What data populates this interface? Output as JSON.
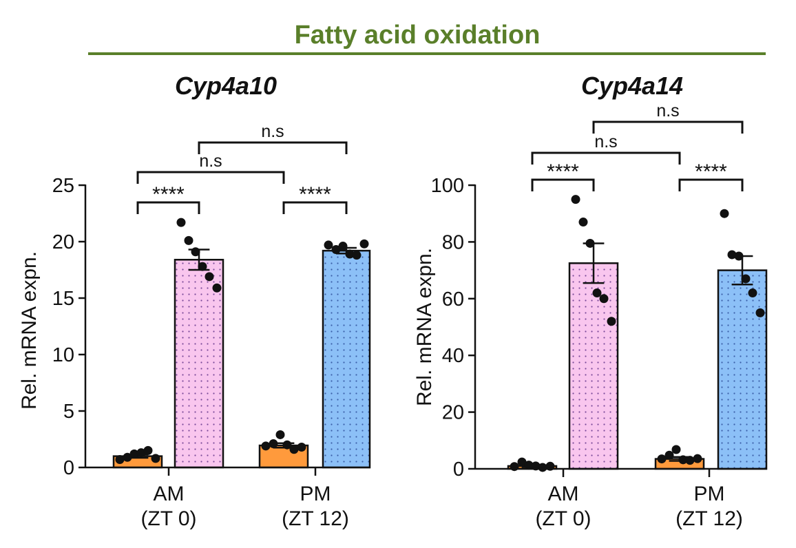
{
  "figure": {
    "title": "Fatty acid oxidation",
    "title_color": "#5a7f2a"
  },
  "colors": {
    "orange": "#ff9a3c",
    "pink": "#f9c6ee",
    "pink_dot": "#7a4a9a",
    "blue": "#8cc0f7",
    "blue_dot": "#3b5fa8",
    "ink": "#111111"
  },
  "chart_data": [
    {
      "type": "bar",
      "title": "Cyp4a10",
      "ylabel": "Rel. mRNA expn.",
      "xlabel": "",
      "ylim": [
        0,
        25
      ],
      "yticks": [
        0,
        5,
        10,
        15,
        20,
        25
      ],
      "categories": [
        {
          "label": "AM",
          "sublabel": "(ZT 0)"
        },
        {
          "label": "PM",
          "sublabel": "(ZT 12)"
        }
      ],
      "bars": [
        {
          "category": "AM",
          "fill": "orange",
          "pattern": "none",
          "mean": 1.0,
          "sem": 0.15,
          "points": [
            0.7,
            0.9,
            1.2,
            1.3,
            1.5,
            0.8
          ]
        },
        {
          "category": "AM",
          "fill": "pink",
          "pattern": "dots",
          "mean": 18.4,
          "sem": 0.9,
          "points": [
            21.7,
            20.1,
            19.1,
            17.8,
            16.9,
            15.9
          ]
        },
        {
          "category": "PM",
          "fill": "orange",
          "pattern": "none",
          "mean": 1.95,
          "sem": 0.2,
          "points": [
            1.9,
            2.1,
            2.9,
            2.0,
            1.6,
            1.8
          ]
        },
        {
          "category": "PM",
          "fill": "blue",
          "pattern": "dots",
          "mean": 19.2,
          "sem": 0.25,
          "points": [
            19.7,
            19.3,
            19.6,
            18.9,
            18.8,
            19.8
          ]
        }
      ],
      "comparisons": [
        {
          "from": 0,
          "to": 1,
          "level": 1,
          "label": "****"
        },
        {
          "from": 2,
          "to": 3,
          "level": 1,
          "label": "****"
        },
        {
          "from": 0,
          "to": 2,
          "level": 2,
          "label": "n.s"
        },
        {
          "from": 1,
          "to": 3,
          "level": 3,
          "label": "n.s"
        }
      ]
    },
    {
      "type": "bar",
      "title": "Cyp4a14",
      "ylabel": "Rel. mRNA expn.",
      "xlabel": "",
      "ylim": [
        0,
        100
      ],
      "yticks": [
        0,
        20,
        40,
        60,
        80,
        100
      ],
      "categories": [
        {
          "label": "AM",
          "sublabel": "(ZT 0)"
        },
        {
          "label": "PM",
          "sublabel": "(ZT 12)"
        }
      ],
      "bars": [
        {
          "category": "AM",
          "fill": "orange",
          "pattern": "none",
          "mean": 1.0,
          "sem": 0.4,
          "points": [
            0.8,
            2.4,
            1.3,
            1.0,
            0.5,
            0.9
          ]
        },
        {
          "category": "AM",
          "fill": "pink",
          "pattern": "dots",
          "mean": 72.5,
          "sem": 7.0,
          "points": [
            95.0,
            87.0,
            79.5,
            62.0,
            60.0,
            52.0
          ]
        },
        {
          "category": "PM",
          "fill": "orange",
          "pattern": "none",
          "mean": 3.5,
          "sem": 0.7,
          "points": [
            3.5,
            4.8,
            6.8,
            3.2,
            3.0,
            3.6
          ]
        },
        {
          "category": "PM",
          "fill": "blue",
          "pattern": "dots",
          "mean": 70.0,
          "sem": 5.0,
          "points": [
            90.0,
            75.5,
            75.0,
            67.0,
            62.0,
            55.0
          ]
        }
      ],
      "comparisons": [
        {
          "from": 0,
          "to": 1,
          "level": 1,
          "label": "****"
        },
        {
          "from": 2,
          "to": 3,
          "level": 1,
          "label": "****"
        },
        {
          "from": 0,
          "to": 2,
          "level": 2,
          "label": "n.s"
        },
        {
          "from": 1,
          "to": 3,
          "level": 3,
          "label": "n.s"
        }
      ]
    }
  ]
}
